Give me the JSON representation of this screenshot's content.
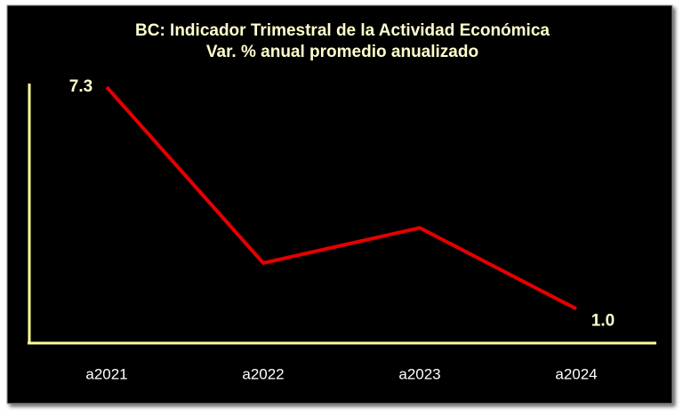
{
  "chart_data": {
    "type": "line",
    "title": "BC: Indicador Trimestral de la Actividad Económica",
    "subtitle": "Var. % anual promedio anualizado",
    "categories": [
      "a2021",
      "a2022",
      "a2023",
      "a2024"
    ],
    "values": [
      7.3,
      2.3,
      3.3,
      1.0
    ],
    "value_labels": [
      "7.3",
      null,
      null,
      "1.0"
    ],
    "color": "#e60000",
    "ylim": [
      0,
      7.4
    ]
  }
}
